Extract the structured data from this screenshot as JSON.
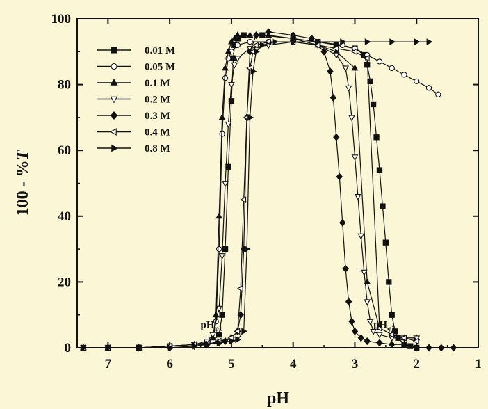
{
  "chart_data": {
    "type": "scatter",
    "title": "",
    "xlabel": "pH",
    "ylabel_main": "100 - %",
    "ylabel_italic": "T",
    "xlim": [
      7.5,
      1.0
    ],
    "ylim": [
      0,
      100
    ],
    "x_reversed": true,
    "x_ticks": [
      7,
      6,
      5,
      4,
      3,
      2,
      1
    ],
    "y_ticks": [
      0,
      20,
      40,
      60,
      80,
      100
    ],
    "grid": false,
    "legend_position": "upper-left",
    "annotations": [
      {
        "text": "pH",
        "sub": "φ1",
        "x": 5.5,
        "y": 6
      },
      {
        "text": "pH",
        "sub": "φ2",
        "x": 2.7,
        "y": 6
      }
    ],
    "series": [
      {
        "name": "0.01 M",
        "marker": "square",
        "fill": true,
        "x": [
          7.4,
          7.0,
          6.5,
          6.0,
          5.6,
          5.4,
          5.3,
          5.2,
          5.15,
          5.1,
          5.05,
          5.0,
          4.97,
          4.95,
          4.9,
          4.8,
          4.5,
          4.0,
          3.6,
          3.3,
          3.0,
          2.85,
          2.8,
          2.75,
          2.7,
          2.65,
          2.6,
          2.55,
          2.5,
          2.45,
          2.4,
          2.35,
          2.3,
          2.2,
          2.1,
          2.0
        ],
        "y": [
          0,
          0,
          0,
          0.5,
          1,
          1.5,
          2,
          4,
          10,
          30,
          55,
          75,
          88,
          92,
          94,
          95,
          95,
          94,
          93,
          92,
          91,
          89,
          86,
          81,
          74,
          64,
          54,
          43,
          32,
          20,
          10,
          5,
          3,
          1,
          0.5,
          0
        ]
      },
      {
        "name": "0.05 M",
        "marker": "circle",
        "fill": false,
        "x": [
          7.4,
          7.0,
          6.5,
          6.0,
          5.6,
          5.4,
          5.3,
          5.25,
          5.2,
          5.15,
          5.1,
          5.05,
          5.0,
          4.9,
          4.7,
          4.4,
          4.0,
          3.6,
          3.2,
          3.0,
          2.8,
          2.6,
          2.4,
          2.2,
          2.0,
          1.8,
          1.65
        ],
        "y": [
          0,
          0,
          0,
          0.5,
          1,
          1.5,
          2,
          8,
          30,
          65,
          82,
          88,
          90,
          92,
          93,
          93,
          93,
          93,
          92,
          91,
          89,
          87,
          85,
          83,
          81,
          79,
          77
        ]
      },
      {
        "name": "0.1 M",
        "marker": "triangle-up",
        "fill": true,
        "x": [
          7.4,
          7.0,
          6.5,
          6.0,
          5.6,
          5.4,
          5.3,
          5.25,
          5.2,
          5.15,
          5.1,
          5.05,
          5.0,
          4.95,
          4.9,
          4.7,
          4.4,
          4.0,
          3.6,
          3.3,
          3.0,
          2.8,
          2.6,
          2.4,
          2.2,
          2.0
        ],
        "y": [
          0,
          0,
          0,
          0.5,
          1,
          1.5,
          3,
          10,
          40,
          70,
          85,
          90,
          93,
          94,
          95,
          95,
          95,
          94,
          92,
          90,
          85,
          20,
          6,
          4,
          3,
          3
        ]
      },
      {
        "name": "0.2 M",
        "marker": "triangle-down",
        "fill": false,
        "x": [
          7.4,
          7.0,
          6.5,
          6.0,
          5.6,
          5.4,
          5.3,
          5.2,
          5.15,
          5.1,
          5.05,
          5.0,
          4.95,
          4.9,
          4.7,
          4.4,
          4.0,
          3.6,
          3.3,
          3.15,
          3.1,
          3.05,
          3.0,
          2.95,
          2.9,
          2.85,
          2.8,
          2.75,
          2.7,
          2.6,
          2.4,
          2.2,
          2.0
        ],
        "y": [
          0,
          0,
          0,
          0.5,
          1,
          2,
          4,
          12,
          28,
          50,
          68,
          80,
          86,
          88,
          91,
          92,
          93,
          92,
          89,
          85,
          79,
          70,
          58,
          46,
          34,
          23,
          14,
          8,
          5,
          4,
          3,
          3,
          3
        ]
      },
      {
        "name": "0.3 M",
        "marker": "diamond",
        "fill": true,
        "x": [
          7.4,
          7.0,
          6.5,
          6.0,
          5.6,
          5.4,
          5.2,
          5.1,
          5.0,
          4.9,
          4.85,
          4.8,
          4.75,
          4.7,
          4.6,
          4.4,
          4.0,
          3.7,
          3.5,
          3.4,
          3.35,
          3.3,
          3.25,
          3.2,
          3.15,
          3.1,
          3.05,
          3.0,
          2.9,
          2.8,
          2.6,
          2.4,
          2.2,
          2.0,
          1.8,
          1.6,
          1.4
        ],
        "y": [
          0,
          0,
          0,
          0,
          0.5,
          1,
          1.5,
          2,
          3,
          5,
          10,
          30,
          70,
          90,
          95,
          96,
          95,
          94,
          90,
          84,
          76,
          64,
          52,
          38,
          24,
          14,
          8,
          5,
          3,
          2,
          1.5,
          1,
          1,
          0,
          0,
          0,
          0
        ]
      },
      {
        "name": "0.4 M",
        "marker": "triangle-left",
        "fill": false,
        "x": [
          7.4,
          7.0,
          6.5,
          6.0,
          5.6,
          5.4,
          5.2,
          5.0,
          4.9,
          4.85,
          4.8,
          4.75,
          4.7,
          4.65,
          4.6,
          4.4,
          4.0,
          3.6,
          3.3,
          3.0,
          2.8,
          2.6,
          2.4,
          2.2,
          2.0
        ],
        "y": [
          0,
          0,
          0,
          0.5,
          1,
          1,
          2,
          3,
          5,
          18,
          45,
          70,
          85,
          90,
          92,
          93,
          93,
          92,
          91,
          90,
          88,
          6,
          4,
          3,
          2
        ]
      },
      {
        "name": "0.8 M",
        "marker": "triangle-right",
        "fill": true,
        "x": [
          7.4,
          7.0,
          6.5,
          6.0,
          5.6,
          5.4,
          5.2,
          5.0,
          4.9,
          4.8,
          4.75,
          4.7,
          4.65,
          4.6,
          4.5,
          4.3,
          4.0,
          3.6,
          3.2,
          2.8,
          2.4,
          2.0,
          1.8
        ],
        "y": [
          0,
          0,
          0,
          0,
          0.5,
          1,
          1.5,
          2,
          2.5,
          5,
          30,
          70,
          84,
          90,
          92,
          93,
          93,
          93,
          93,
          93,
          93,
          93,
          93
        ]
      }
    ]
  }
}
